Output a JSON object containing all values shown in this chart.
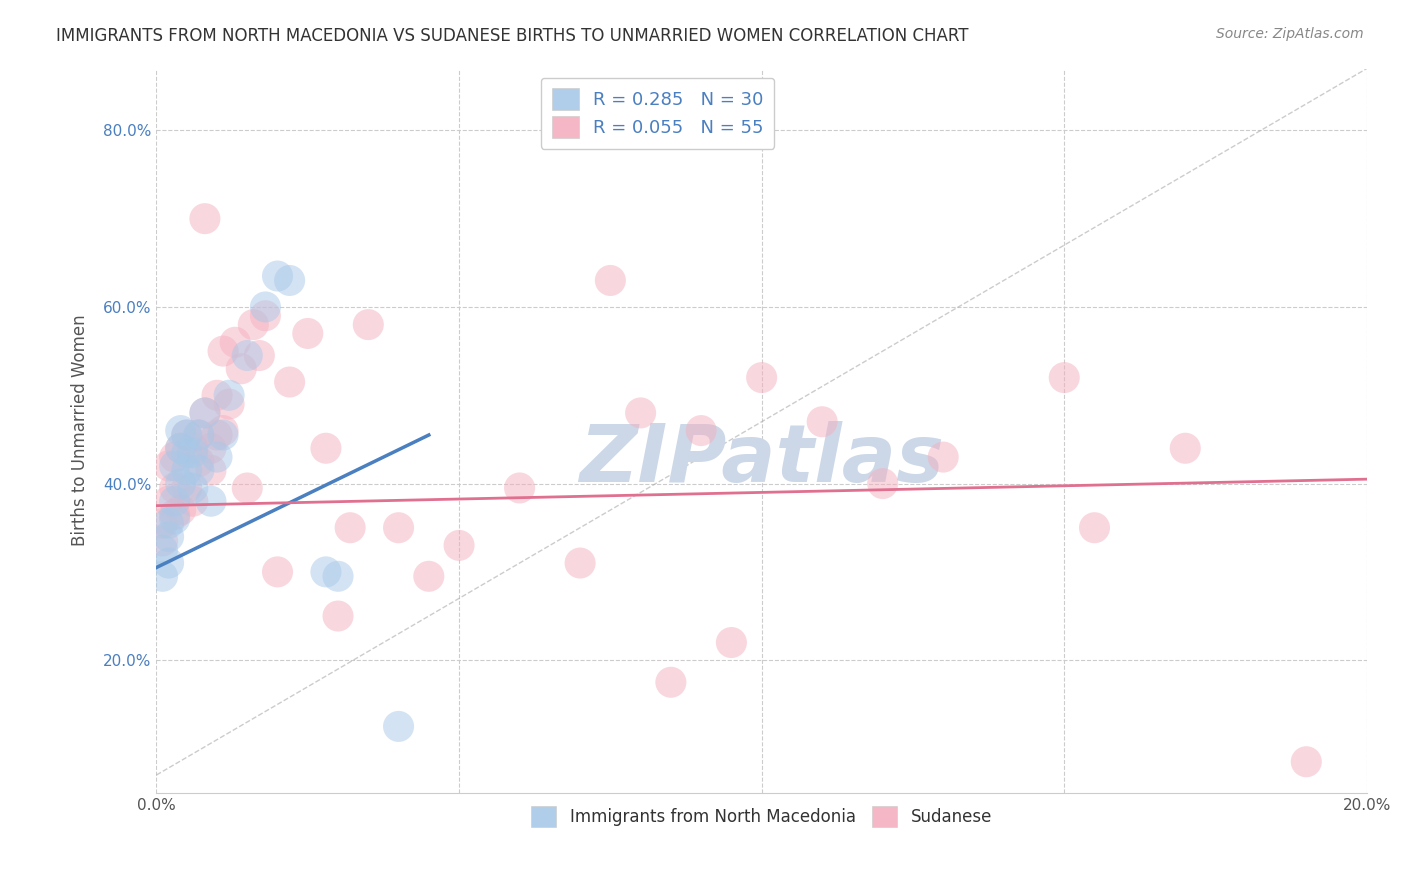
{
  "title": "IMMIGRANTS FROM NORTH MACEDONIA VS SUDANESE BIRTHS TO UNMARRIED WOMEN CORRELATION CHART",
  "source": "Source: ZipAtlas.com",
  "ylabel": "Births to Unmarried Women",
  "xlim": [
    0.0,
    0.2
  ],
  "ylim": [
    0.05,
    0.87
  ],
  "xticks": [
    0.0,
    0.05,
    0.1,
    0.15,
    0.2
  ],
  "yticks": [
    0.2,
    0.4,
    0.6,
    0.8
  ],
  "xtick_labels": [
    "0.0%",
    "",
    "",
    "",
    "20.0%"
  ],
  "ytick_labels": [
    "20.0%",
    "40.0%",
    "60.0%",
    "80.0%"
  ],
  "blue_R": 0.285,
  "blue_N": 30,
  "pink_R": 0.055,
  "pink_N": 55,
  "blue_color": "#a8c8e8",
  "pink_color": "#f4b0c0",
  "blue_line_color": "#4a7fc0",
  "pink_line_color": "#e07090",
  "background_color": "#ffffff",
  "grid_color": "#cccccc",
  "watermark_text": "ZIPatlas",
  "watermark_color": "#ccd8e8",
  "blue_x": [
    0.001,
    0.001,
    0.002,
    0.002,
    0.002,
    0.003,
    0.003,
    0.003,
    0.004,
    0.004,
    0.004,
    0.005,
    0.005,
    0.005,
    0.006,
    0.006,
    0.007,
    0.007,
    0.008,
    0.009,
    0.01,
    0.011,
    0.012,
    0.015,
    0.018,
    0.02,
    0.022,
    0.028,
    0.03,
    0.04
  ],
  "blue_y": [
    0.325,
    0.295,
    0.34,
    0.31,
    0.355,
    0.38,
    0.36,
    0.42,
    0.4,
    0.44,
    0.46,
    0.435,
    0.415,
    0.455,
    0.395,
    0.435,
    0.455,
    0.415,
    0.48,
    0.38,
    0.43,
    0.455,
    0.5,
    0.545,
    0.6,
    0.635,
    0.63,
    0.3,
    0.295,
    0.125
  ],
  "pink_x": [
    0.001,
    0.001,
    0.002,
    0.002,
    0.003,
    0.003,
    0.003,
    0.004,
    0.004,
    0.005,
    0.005,
    0.006,
    0.006,
    0.007,
    0.007,
    0.008,
    0.008,
    0.009,
    0.009,
    0.01,
    0.01,
    0.011,
    0.011,
    0.012,
    0.013,
    0.014,
    0.015,
    0.016,
    0.017,
    0.018,
    0.02,
    0.022,
    0.025,
    0.028,
    0.03,
    0.032,
    0.035,
    0.04,
    0.045,
    0.05,
    0.06,
    0.07,
    0.075,
    0.08,
    0.085,
    0.09,
    0.095,
    0.1,
    0.11,
    0.12,
    0.13,
    0.15,
    0.155,
    0.17,
    0.19
  ],
  "pink_y": [
    0.355,
    0.335,
    0.38,
    0.42,
    0.395,
    0.365,
    0.43,
    0.44,
    0.37,
    0.455,
    0.395,
    0.44,
    0.38,
    0.455,
    0.425,
    0.7,
    0.48,
    0.44,
    0.415,
    0.5,
    0.455,
    0.46,
    0.55,
    0.49,
    0.56,
    0.53,
    0.395,
    0.58,
    0.545,
    0.59,
    0.3,
    0.515,
    0.57,
    0.44,
    0.25,
    0.35,
    0.58,
    0.35,
    0.295,
    0.33,
    0.395,
    0.31,
    0.63,
    0.48,
    0.175,
    0.46,
    0.22,
    0.52,
    0.47,
    0.4,
    0.43,
    0.52,
    0.35,
    0.44,
    0.085
  ],
  "blue_trend_x": [
    0.0,
    0.045
  ],
  "blue_trend_y": [
    0.305,
    0.455
  ],
  "pink_trend_x": [
    0.0,
    0.2
  ],
  "pink_trend_y": [
    0.375,
    0.405
  ]
}
